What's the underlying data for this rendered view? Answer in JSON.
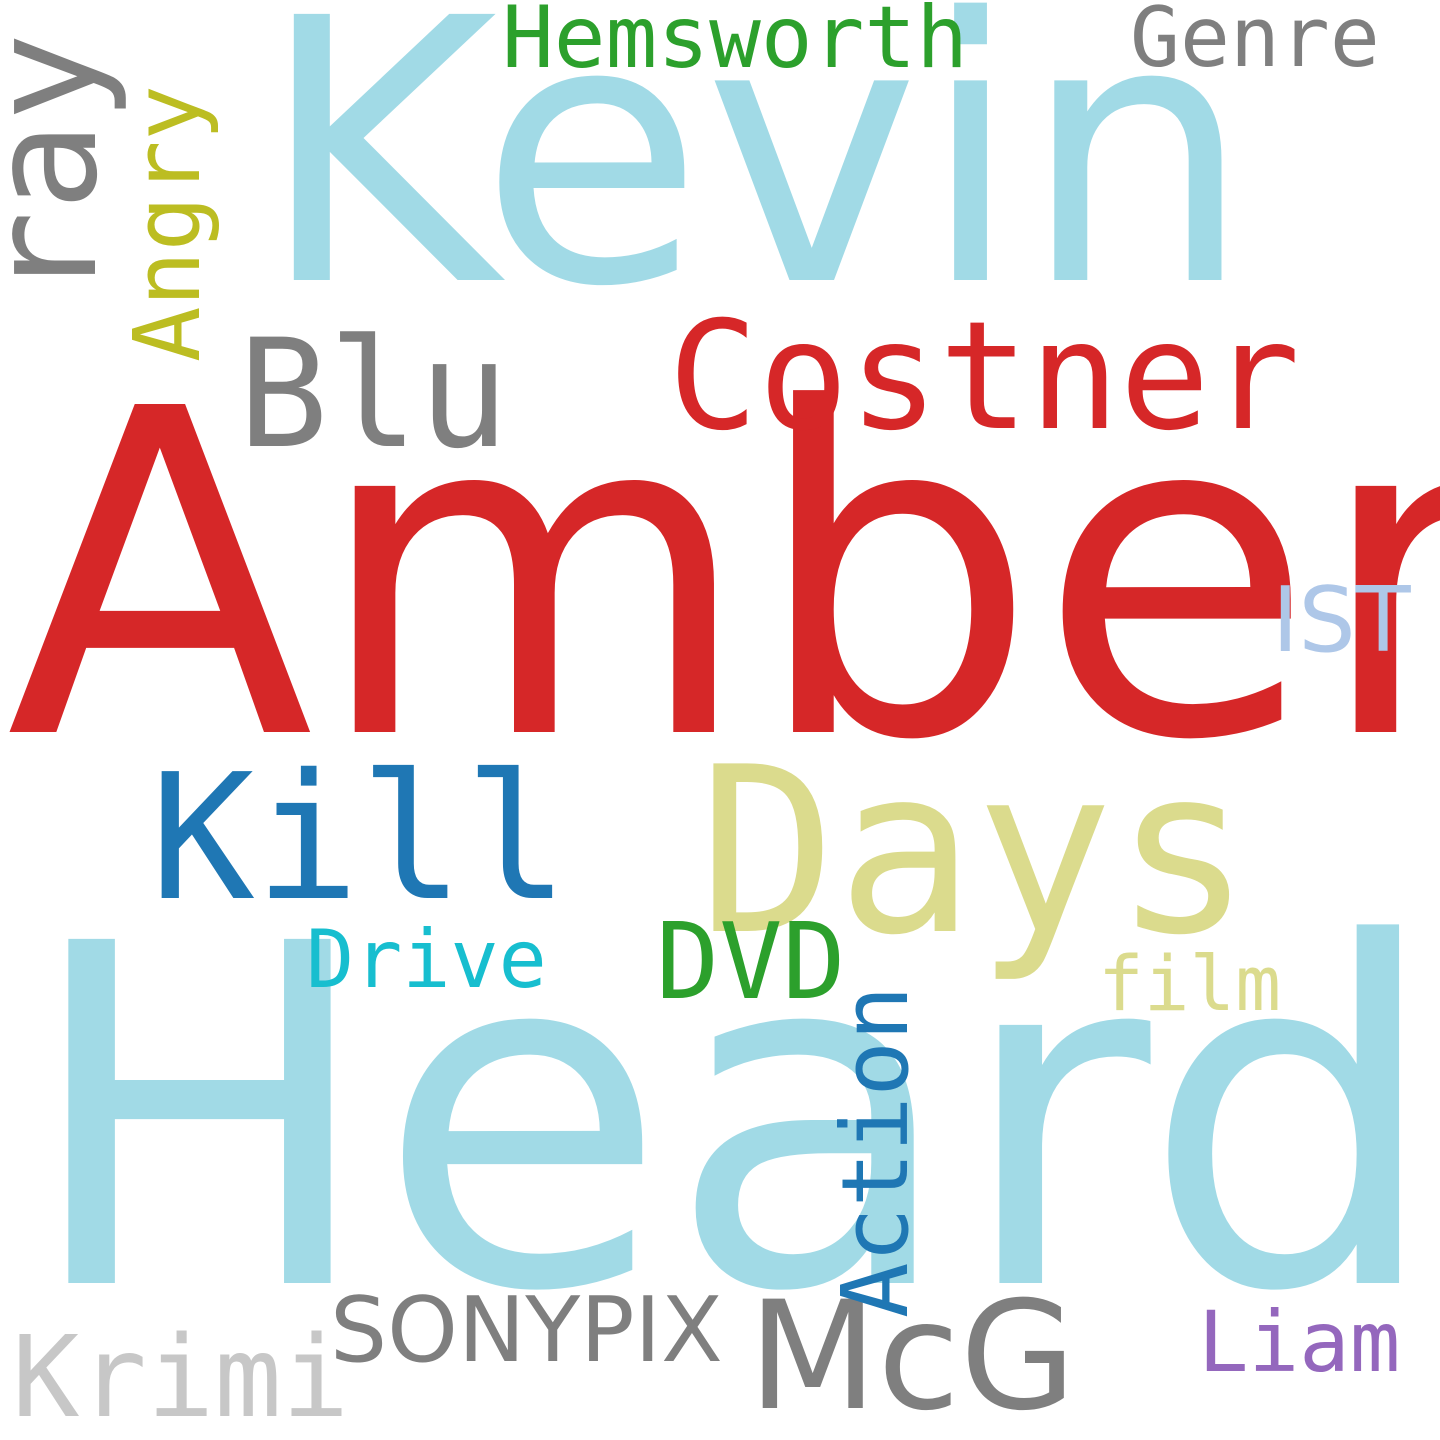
{
  "words": {
    "kevin": {
      "text": "Kevin",
      "color": "#a1dae6"
    },
    "amber": {
      "text": "Amber",
      "color": "#d62728"
    },
    "heard": {
      "text": "Heard",
      "color": "#a1dae6"
    },
    "costner": {
      "text": "Costner",
      "color": "#d62728"
    },
    "days": {
      "text": "Days",
      "color": "#dbdb8d"
    },
    "kill": {
      "text": "Kill",
      "color": "#1f77b4"
    },
    "blu": {
      "text": "Blu",
      "color": "#7f7f7f"
    },
    "ray": {
      "text": "ray",
      "color": "#7f7f7f"
    },
    "mcg": {
      "text": "McG",
      "color": "#7f7f7f"
    },
    "hemsworth": {
      "text": "Hemsworth",
      "color": "#2ca02c"
    },
    "genre": {
      "text": "Genre",
      "color": "#7f7f7f"
    },
    "angry": {
      "text": "Angry",
      "color": "#bcbd22"
    },
    "ist": {
      "text": "IST",
      "color": "#aec7e8"
    },
    "dvd": {
      "text": "DVD",
      "color": "#2ca02c"
    },
    "drive": {
      "text": "Drive",
      "color": "#17becf"
    },
    "film": {
      "text": "film",
      "color": "#dbdb8d"
    },
    "action": {
      "text": "Action",
      "color": "#1f77b4"
    },
    "sonypix": {
      "text": "SONYPIX",
      "color": "#7f7f7f"
    },
    "liam": {
      "text": "Liam",
      "color": "#9467bd"
    },
    "krimi": {
      "text": "Krimi",
      "color": "#c7c7c7"
    }
  }
}
